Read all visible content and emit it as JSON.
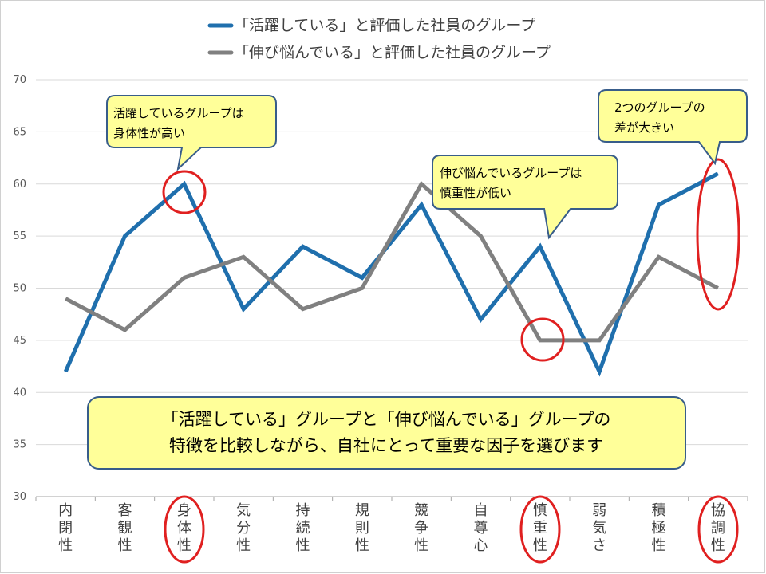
{
  "colors": {
    "series_active": "#1f6fad",
    "series_struggling": "#808080",
    "gridline": "#d9d9d9",
    "callout_fill": "#ffff99",
    "callout_stroke": "#385d8a",
    "highlight_circle": "#e02020"
  },
  "chart_data": {
    "type": "line",
    "categories": [
      "内閉性",
      "客観性",
      "身体性",
      "気分性",
      "持続性",
      "規則性",
      "競争性",
      "自尊心",
      "慎重性",
      "弱気さ",
      "積極性",
      "協調性"
    ],
    "series": [
      {
        "name": "「活躍している」と評価した社員のグループ",
        "color": "#1f6fad",
        "values": [
          42,
          55,
          60,
          48,
          54,
          51,
          58,
          47,
          54,
          42,
          58,
          61
        ]
      },
      {
        "name": "「伸び悩んでいる」と評価した社員のグループ",
        "color": "#808080",
        "values": [
          49,
          46,
          51,
          53,
          48,
          50,
          60,
          55,
          45,
          45,
          53,
          50
        ]
      }
    ],
    "ylim": [
      30,
      70
    ],
    "yticks": [
      30,
      35,
      40,
      45,
      50,
      55,
      60,
      65,
      70
    ],
    "grid": true,
    "legend": "top-center",
    "highlighted_categories": [
      "身体性",
      "慎重性",
      "協調性"
    ]
  },
  "callouts": [
    {
      "id": "physical",
      "lines": [
        "活躍しているグループは",
        "身体性が高い"
      ]
    },
    {
      "id": "cautious",
      "lines": [
        "伸び悩んでいるグループは",
        "慎重性が低い"
      ]
    },
    {
      "id": "gap",
      "lines": [
        "2つのグループの",
        "差が大きい"
      ]
    }
  ],
  "summary_box": {
    "lines": [
      "「活躍している」グループと「伸び悩んでいる」グループの",
      "特徴を比較しながら、自社にとって重要な因子を選びます"
    ]
  }
}
